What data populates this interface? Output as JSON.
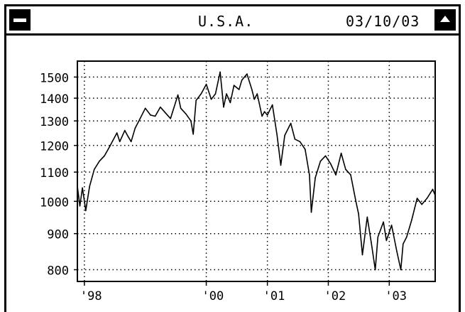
{
  "window": {
    "title": "U.S.A.",
    "date": "03/10/03",
    "close_icon": "close-box-icon",
    "zoom_icon": "zoom-up-arrow-icon"
  },
  "chart_data": {
    "type": "line",
    "title": "",
    "xlabel": "",
    "ylabel": "",
    "y_scale": "log",
    "ylim": [
      770,
      1580
    ],
    "xlim": [
      "1997-11-20",
      "2003-10-03"
    ],
    "grid": true,
    "y_ticks": [
      800,
      900,
      1000,
      1100,
      1200,
      1300,
      1400,
      1500
    ],
    "x_tick_labels": [
      {
        "date": "1998-01-01",
        "label": "'98"
      },
      {
        "date": "2000-01-01",
        "label": "'00"
      },
      {
        "date": "2001-01-01",
        "label": "'01"
      },
      {
        "date": "2002-01-01",
        "label": "'02"
      },
      {
        "date": "2003-01-01",
        "label": "'03"
      }
    ],
    "series": [
      {
        "color": "#000000",
        "points": [
          [
            "1997-11-20",
            1050
          ],
          [
            "1997-12-05",
            985
          ],
          [
            "1997-12-20",
            1045
          ],
          [
            "1998-01-09",
            970
          ],
          [
            "1998-02-01",
            1050
          ],
          [
            "1998-03-01",
            1110
          ],
          [
            "1998-04-01",
            1140
          ],
          [
            "1998-05-01",
            1160
          ],
          [
            "1998-06-01",
            1195
          ],
          [
            "1998-07-15",
            1250
          ],
          [
            "1998-08-01",
            1215
          ],
          [
            "1998-08-31",
            1260
          ],
          [
            "1998-09-20",
            1235
          ],
          [
            "1998-10-08",
            1215
          ],
          [
            "1998-11-01",
            1270
          ],
          [
            "1998-12-01",
            1310
          ],
          [
            "1999-01-01",
            1355
          ],
          [
            "1999-02-01",
            1325
          ],
          [
            "1999-03-01",
            1320
          ],
          [
            "1999-04-01",
            1360
          ],
          [
            "1999-05-01",
            1335
          ],
          [
            "1999-06-01",
            1310
          ],
          [
            "1999-07-15",
            1415
          ],
          [
            "1999-08-01",
            1355
          ],
          [
            "1999-09-01",
            1330
          ],
          [
            "1999-10-01",
            1300
          ],
          [
            "1999-10-15",
            1245
          ],
          [
            "1999-11-01",
            1390
          ],
          [
            "1999-12-01",
            1420
          ],
          [
            "2000-01-01",
            1465
          ],
          [
            "2000-01-31",
            1395
          ],
          [
            "2000-02-25",
            1420
          ],
          [
            "2000-03-24",
            1525
          ],
          [
            "2000-04-14",
            1360
          ],
          [
            "2000-05-01",
            1420
          ],
          [
            "2000-05-24",
            1380
          ],
          [
            "2000-06-15",
            1460
          ],
          [
            "2000-07-15",
            1440
          ],
          [
            "2000-08-01",
            1485
          ],
          [
            "2000-09-01",
            1515
          ],
          [
            "2000-09-30",
            1440
          ],
          [
            "2000-10-15",
            1395
          ],
          [
            "2000-11-01",
            1420
          ],
          [
            "2000-11-30",
            1320
          ],
          [
            "2000-12-15",
            1340
          ],
          [
            "2001-01-01",
            1325
          ],
          [
            "2001-01-31",
            1370
          ],
          [
            "2001-02-28",
            1240
          ],
          [
            "2001-03-22",
            1125
          ],
          [
            "2001-04-15",
            1240
          ],
          [
            "2001-05-21",
            1290
          ],
          [
            "2001-06-15",
            1225
          ],
          [
            "2001-07-15",
            1215
          ],
          [
            "2001-08-15",
            1185
          ],
          [
            "2001-09-10",
            1090
          ],
          [
            "2001-09-21",
            965
          ],
          [
            "2001-10-15",
            1080
          ],
          [
            "2001-11-15",
            1140
          ],
          [
            "2001-12-15",
            1160
          ],
          [
            "2002-01-15",
            1130
          ],
          [
            "2002-02-15",
            1090
          ],
          [
            "2002-03-19",
            1170
          ],
          [
            "2002-04-15",
            1110
          ],
          [
            "2002-05-15",
            1090
          ],
          [
            "2002-06-15",
            1000
          ],
          [
            "2002-07-01",
            960
          ],
          [
            "2002-07-24",
            840
          ],
          [
            "2002-08-22",
            950
          ],
          [
            "2002-09-15",
            875
          ],
          [
            "2002-10-09",
            800
          ],
          [
            "2002-10-25",
            890
          ],
          [
            "2002-11-27",
            935
          ],
          [
            "2002-12-15",
            880
          ],
          [
            "2003-01-15",
            925
          ],
          [
            "2003-02-15",
            850
          ],
          [
            "2003-03-11",
            800
          ],
          [
            "2003-03-25",
            870
          ],
          [
            "2003-04-15",
            890
          ],
          [
            "2003-05-15",
            940
          ],
          [
            "2003-06-17",
            1010
          ],
          [
            "2003-07-15",
            990
          ],
          [
            "2003-08-15",
            1010
          ],
          [
            "2003-09-18",
            1040
          ],
          [
            "2003-10-03",
            1020
          ]
        ]
      }
    ]
  }
}
